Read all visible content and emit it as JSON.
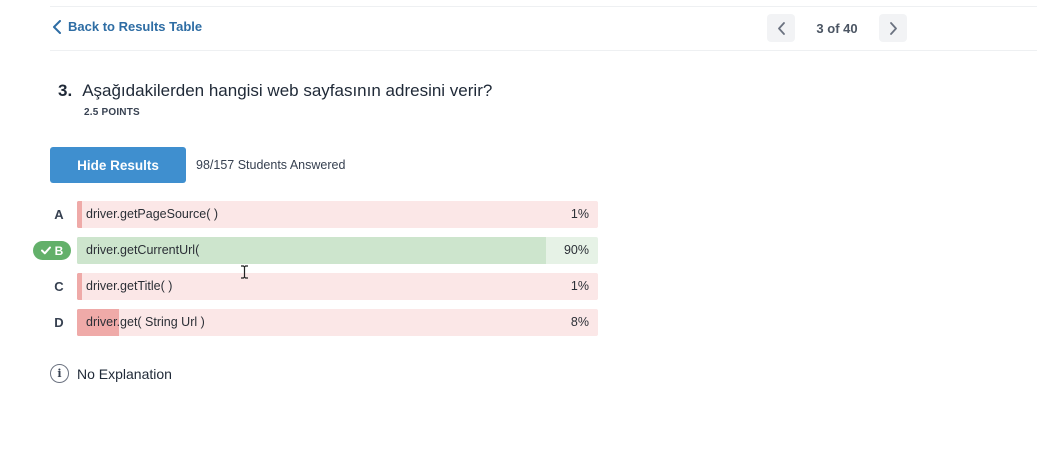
{
  "nav": {
    "back_label": "Back to Results Table",
    "pager_text": "3 of 40"
  },
  "question": {
    "number": "3.",
    "text": "Aşağıdakilerden hangisi web sayfasının adresini verir?",
    "points": "2.5 POINTS"
  },
  "results": {
    "hide_button_label": "Hide Results",
    "answered_text": "98/157 Students Answered"
  },
  "options": [
    {
      "letter": "A",
      "text": "driver.getPageSource( )",
      "percent_label": "1%",
      "percent": 1,
      "correct": false
    },
    {
      "letter": "B",
      "text": "driver.getCurrentUrl(",
      "percent_label": "90%",
      "percent": 90,
      "correct": true
    },
    {
      "letter": "C",
      "text": "driver.getTitle( )",
      "percent_label": "1%",
      "percent": 1,
      "correct": false
    },
    {
      "letter": "D",
      "text": "driver.get( String Url )",
      "percent_label": "8%",
      "percent": 8,
      "correct": false
    }
  ],
  "explanation": {
    "icon_glyph": "i",
    "text": "No Explanation"
  },
  "colors": {
    "accent": "#3f8fcf",
    "link": "#2e6da4",
    "correct": "#63b06a",
    "wrong_bg": "#fbe7e7",
    "wrong_fill": "#efaaa8",
    "correct_bg": "#e6f2e6",
    "correct_fill": "#cde5cd"
  }
}
